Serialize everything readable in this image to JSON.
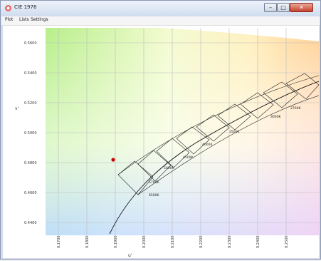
{
  "window": {
    "title": "CIE 1976"
  },
  "menu": {
    "items": [
      "Plot",
      "Lists",
      "Settings"
    ]
  },
  "axes": {
    "xlabel": "u'",
    "ylabel": "v'",
    "xticks": [
      "0.1700",
      "0.1800",
      "0.1900",
      "0.2000",
      "0.2100",
      "0.2200",
      "0.2300",
      "0.2400",
      "0.2500"
    ],
    "yticks": [
      "0.5600",
      "0.5400",
      "0.5200",
      "0.5000",
      "0.4800",
      "0.4600",
      "0.4400"
    ]
  },
  "cct_labels": [
    "6500K",
    "5700K",
    "5000K",
    "4500K",
    "4000K",
    "3500K",
    "3000K",
    "2700K"
  ],
  "marker": {
    "label": "",
    "color": "#cc0000"
  },
  "colors": {
    "close": "#c8412c",
    "grid": "#bbbbbb",
    "curve": "#111111"
  }
}
